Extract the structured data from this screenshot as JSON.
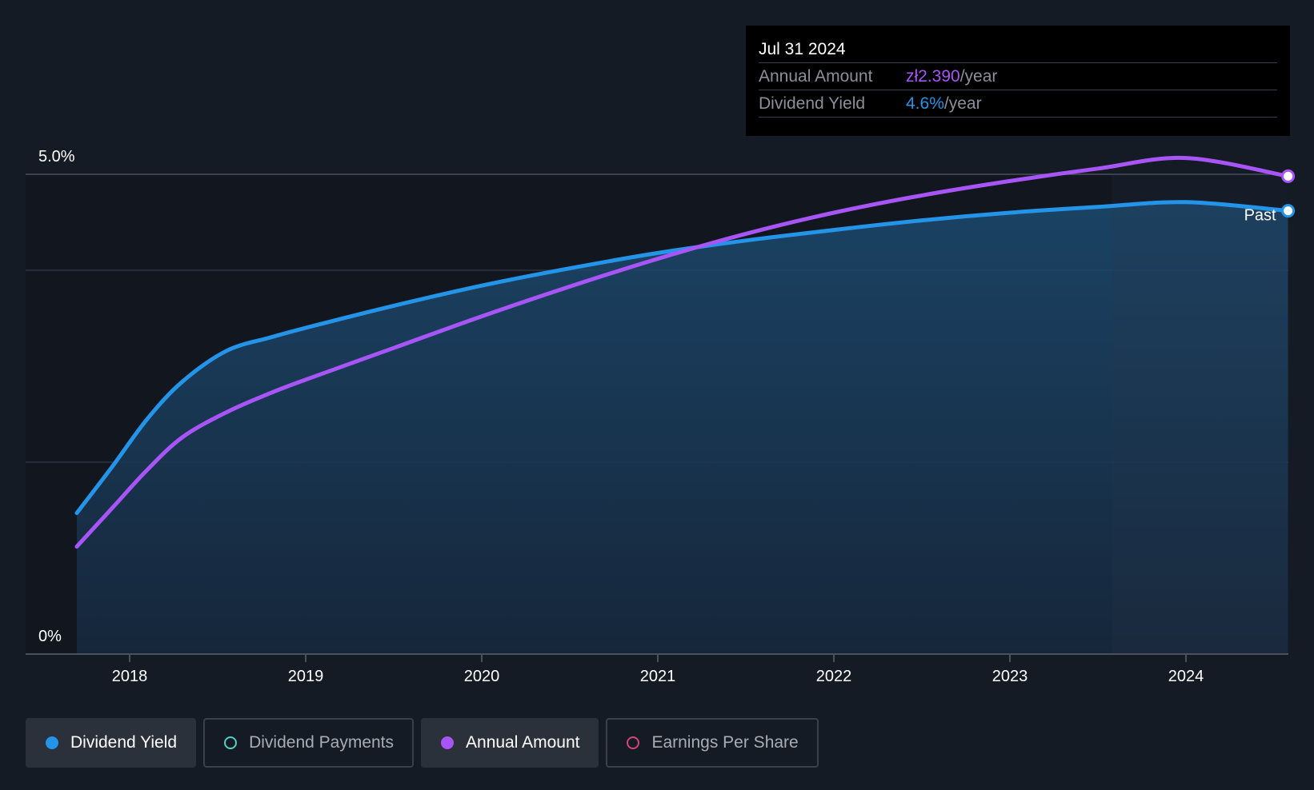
{
  "chart_data": {
    "type": "line",
    "y_axis": {
      "top_label": "5.0%",
      "bottom_label": "0%",
      "ylim": [
        0,
        5.0
      ],
      "unit": "%"
    },
    "x_axis": {
      "ticks": [
        "2018",
        "2019",
        "2020",
        "2021",
        "2022",
        "2023",
        "2024"
      ],
      "range": [
        2017.7,
        2024.58
      ]
    },
    "series": [
      {
        "name": "Dividend Yield",
        "color": "#2394e8",
        "area": true,
        "points": [
          [
            2017.7,
            1.47
          ],
          [
            2017.9,
            1.95
          ],
          [
            2018.1,
            2.45
          ],
          [
            2018.3,
            2.84
          ],
          [
            2018.55,
            3.16
          ],
          [
            2018.8,
            3.3
          ],
          [
            2019.0,
            3.4
          ],
          [
            2019.5,
            3.63
          ],
          [
            2020.0,
            3.84
          ],
          [
            2020.5,
            4.02
          ],
          [
            2021.0,
            4.18
          ],
          [
            2021.5,
            4.31
          ],
          [
            2022.0,
            4.42
          ],
          [
            2022.5,
            4.52
          ],
          [
            2023.0,
            4.6
          ],
          [
            2023.5,
            4.66
          ],
          [
            2024.0,
            4.71
          ],
          [
            2024.58,
            4.62
          ]
        ]
      },
      {
        "name": "Annual Amount",
        "color": "#a855f7",
        "area": false,
        "points": [
          [
            2017.7,
            1.12
          ],
          [
            2017.9,
            1.52
          ],
          [
            2018.1,
            1.92
          ],
          [
            2018.3,
            2.26
          ],
          [
            2018.55,
            2.52
          ],
          [
            2018.8,
            2.72
          ],
          [
            2019.0,
            2.86
          ],
          [
            2019.5,
            3.19
          ],
          [
            2020.0,
            3.52
          ],
          [
            2020.5,
            3.83
          ],
          [
            2021.0,
            4.12
          ],
          [
            2021.5,
            4.38
          ],
          [
            2022.0,
            4.6
          ],
          [
            2022.5,
            4.78
          ],
          [
            2023.0,
            4.93
          ],
          [
            2023.5,
            5.06
          ],
          [
            2024.0,
            5.17
          ],
          [
            2024.58,
            4.98
          ]
        ]
      }
    ],
    "past_region": {
      "label": "Past",
      "from": 2023.58,
      "to": 2024.58
    }
  },
  "tooltip": {
    "date": "Jul 31 2024",
    "rows": [
      {
        "key": "Annual Amount",
        "value": "zł2.390",
        "unit": "/year"
      },
      {
        "key": "Dividend Yield",
        "value": "4.6%",
        "unit": "/year"
      }
    ]
  },
  "legend": [
    {
      "label": "Dividend Yield",
      "color": "#2394e8",
      "active": true,
      "filled": true
    },
    {
      "label": "Dividend Payments",
      "color": "#4fd1c5",
      "active": false,
      "filled": false
    },
    {
      "label": "Annual Amount",
      "color": "#a855f7",
      "active": true,
      "filled": true
    },
    {
      "label": "Earnings Per Share",
      "color": "#d6457a",
      "active": false,
      "filled": false
    }
  ],
  "colors": {
    "background": "#151b24",
    "grid": "#3a414b",
    "yield": "#2394e8",
    "amount": "#a855f7"
  }
}
